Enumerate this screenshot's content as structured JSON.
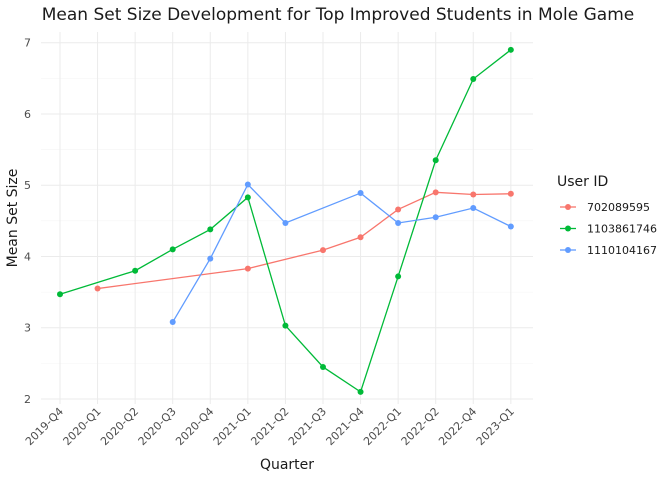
{
  "chart_data": {
    "type": "line",
    "title": "Mean Set Size Development for Top Improved Students in Mole Game",
    "xlabel": "Quarter",
    "ylabel": "Mean Set Size",
    "categories": [
      "2019-Q4",
      "2020-Q1",
      "2020-Q2",
      "2020-Q3",
      "2020-Q4",
      "2021-Q1",
      "2021-Q2",
      "2021-Q3",
      "2021-Q4",
      "2022-Q1",
      "2022-Q2",
      "2022-Q4",
      "2023-Q1"
    ],
    "ylim": [
      1.93,
      7.15
    ],
    "yticks": [
      2,
      3,
      4,
      5,
      6,
      7
    ],
    "grid": true,
    "legend": {
      "title": "User ID",
      "position": "right"
    },
    "series": [
      {
        "name": "702089595",
        "color": "#F8766D",
        "values": [
          null,
          3.55,
          null,
          null,
          null,
          3.83,
          null,
          4.09,
          4.27,
          4.66,
          4.9,
          4.87,
          4.88
        ]
      },
      {
        "name": "1103861746",
        "color": "#00BA38",
        "values": [
          3.47,
          null,
          3.8,
          4.1,
          4.38,
          4.83,
          3.03,
          2.45,
          2.1,
          3.72,
          5.35,
          6.49,
          6.9
        ]
      },
      {
        "name": "1110104167",
        "color": "#619CFF",
        "values": [
          null,
          null,
          null,
          3.08,
          3.97,
          5.01,
          4.47,
          null,
          4.89,
          4.47,
          4.55,
          4.68,
          4.42
        ]
      }
    ]
  }
}
